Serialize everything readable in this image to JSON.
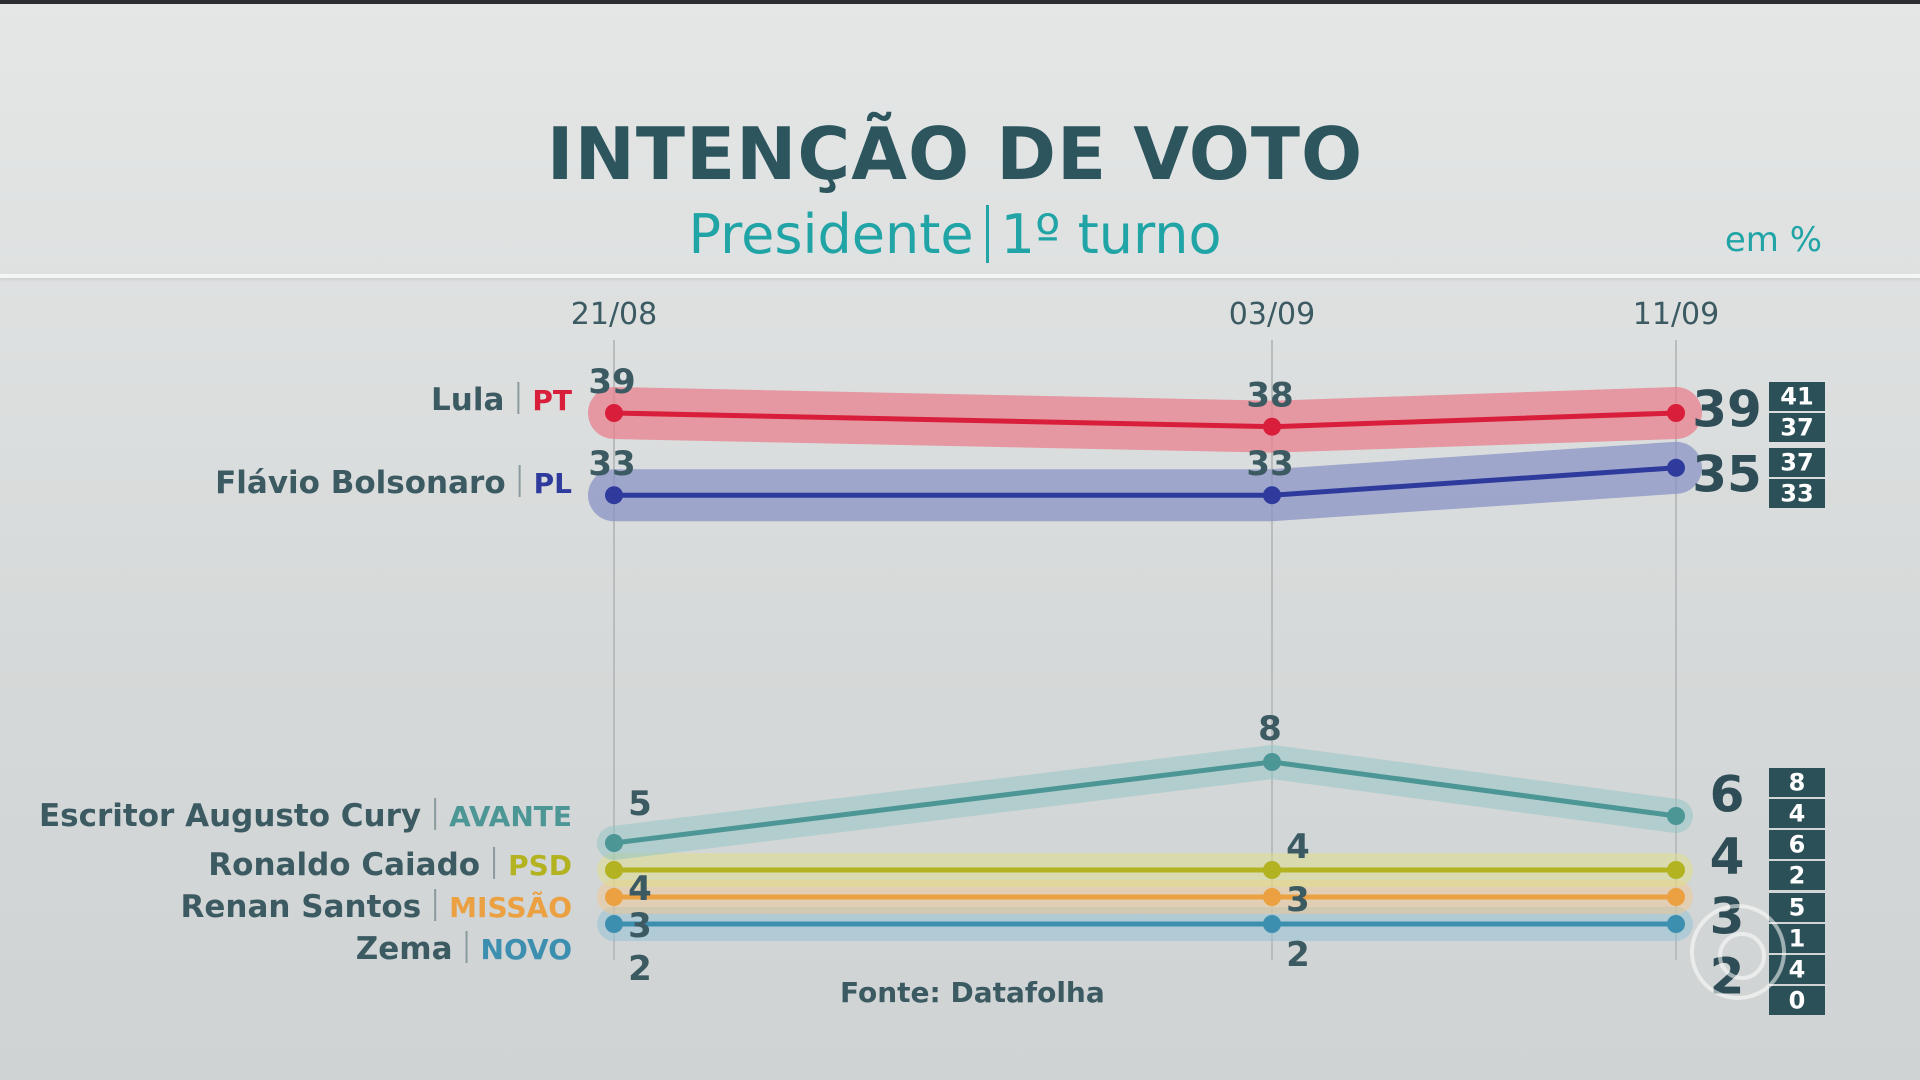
{
  "header": {
    "title": "INTENÇÃO DE VOTO",
    "subtitle_left": "Presidente",
    "subtitle_right": "1º turno",
    "unit": "em %"
  },
  "footer": {
    "source": "Fonte: Datafolha"
  },
  "chart_data": {
    "type": "line",
    "x": [
      "21/08",
      "03/09",
      "11/09"
    ],
    "ylim": [
      0,
      41
    ],
    "grid": "vertical",
    "series": [
      {
        "name": "Lula",
        "party": "PT",
        "color": "#d91e3b",
        "band_color": "#e8808d",
        "values": [
          39,
          38,
          39
        ],
        "label_pos": [
          "above",
          "above",
          "right"
        ],
        "range": [
          41,
          37
        ]
      },
      {
        "name": "Flávio Bolsonaro",
        "party": "PL",
        "color": "#2e3b9c",
        "band_color": "#8a93c6",
        "values": [
          33,
          33,
          35
        ],
        "label_pos": [
          "above",
          "above",
          "right"
        ],
        "range": [
          37,
          33
        ]
      },
      {
        "name": "Escritor Augusto Cury",
        "party": "AVANTE",
        "color": "#4d9696",
        "band_color": "#8fc3c4",
        "values": [
          5,
          8,
          6
        ],
        "label_pos": [
          "above",
          "above",
          "right"
        ],
        "range": [
          8,
          4
        ]
      },
      {
        "name": "Ronaldo Caiado",
        "party": "PSD",
        "color": "#b3b322",
        "band_color": "#e0df85",
        "values": [
          4,
          4,
          4
        ],
        "label_pos": [
          "below",
          "above",
          "right"
        ],
        "range": [
          6,
          2
        ]
      },
      {
        "name": "Renan Santos",
        "party": "MISSÃO",
        "color": "#eba142",
        "band_color": "#f1c88f",
        "values": [
          3,
          3,
          3
        ],
        "label_pos": [
          "below",
          "below",
          "right"
        ],
        "range": [
          5,
          1
        ]
      },
      {
        "name": "Zema",
        "party": "NOVO",
        "color": "#3d8fb0",
        "band_color": "#8fc1d5",
        "values": [
          2,
          2,
          2
        ],
        "label_pos": [
          "below",
          "below",
          "right"
        ],
        "range": [
          4,
          0
        ]
      }
    ]
  }
}
